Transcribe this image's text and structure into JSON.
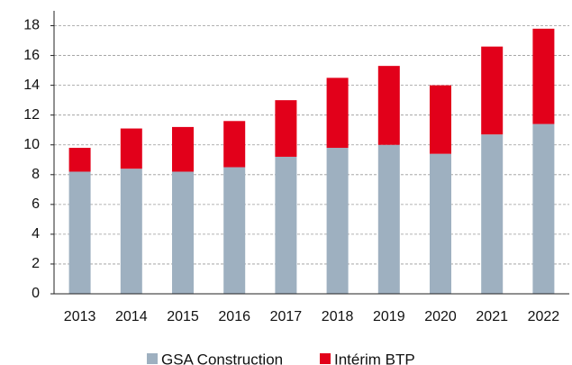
{
  "chart_data": {
    "type": "stacked_bar",
    "categories": [
      "2013",
      "2014",
      "2015",
      "2016",
      "2017",
      "2018",
      "2019",
      "2020",
      "2021",
      "2022"
    ],
    "series": [
      {
        "name": "GSA Construction",
        "color": "#9eb0c0",
        "values": [
          8.2,
          8.4,
          8.2,
          8.5,
          9.2,
          9.8,
          10.0,
          9.4,
          10.7,
          11.4
        ]
      },
      {
        "name": "Intérim BTP",
        "color": "#e2001a",
        "values": [
          1.6,
          2.7,
          3.0,
          3.1,
          3.8,
          4.7,
          5.3,
          4.6,
          5.9,
          6.4
        ]
      }
    ],
    "ylim": [
      0,
      19
    ],
    "yticks": [
      0,
      2,
      4,
      6,
      8,
      10,
      12,
      14,
      16,
      18
    ],
    "grid": true,
    "legend": "bottom"
  }
}
